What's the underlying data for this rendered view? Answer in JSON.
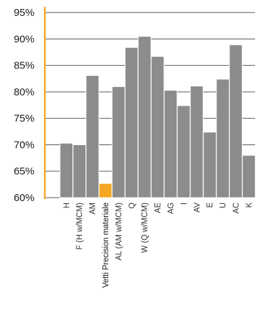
{
  "chart_data": {
    "type": "bar",
    "title": "",
    "xlabel": "",
    "ylabel": "",
    "ylim": [
      60,
      96
    ],
    "y_ticks": [
      "60%",
      "65%",
      "70%",
      "75%",
      "80%",
      "85%",
      "90%",
      "95%"
    ],
    "y_tick_values": [
      60,
      65,
      70,
      75,
      80,
      85,
      90,
      95
    ],
    "grid": true,
    "legend": "none",
    "categories": [
      "H",
      "F (H w/MCM)",
      "AM",
      "Vetti Precision materiale",
      "AL (AM w/MCM)",
      "Q",
      "W (Q w/MCM)",
      "AE",
      "AG",
      "I",
      "AV",
      "E",
      "U",
      "AC",
      "K"
    ],
    "values": [
      70.3,
      70.0,
      83.1,
      62.7,
      81.0,
      88.4,
      90.5,
      86.7,
      80.3,
      77.4,
      81.1,
      72.4,
      82.4,
      88.9,
      68.0
    ],
    "highlight_index": 3,
    "colors": {
      "bar": "#8c8c8c",
      "highlight": "#f5a623",
      "axis": "#f5a623",
      "grid": "#555555",
      "text": "#1a1a1a"
    }
  }
}
